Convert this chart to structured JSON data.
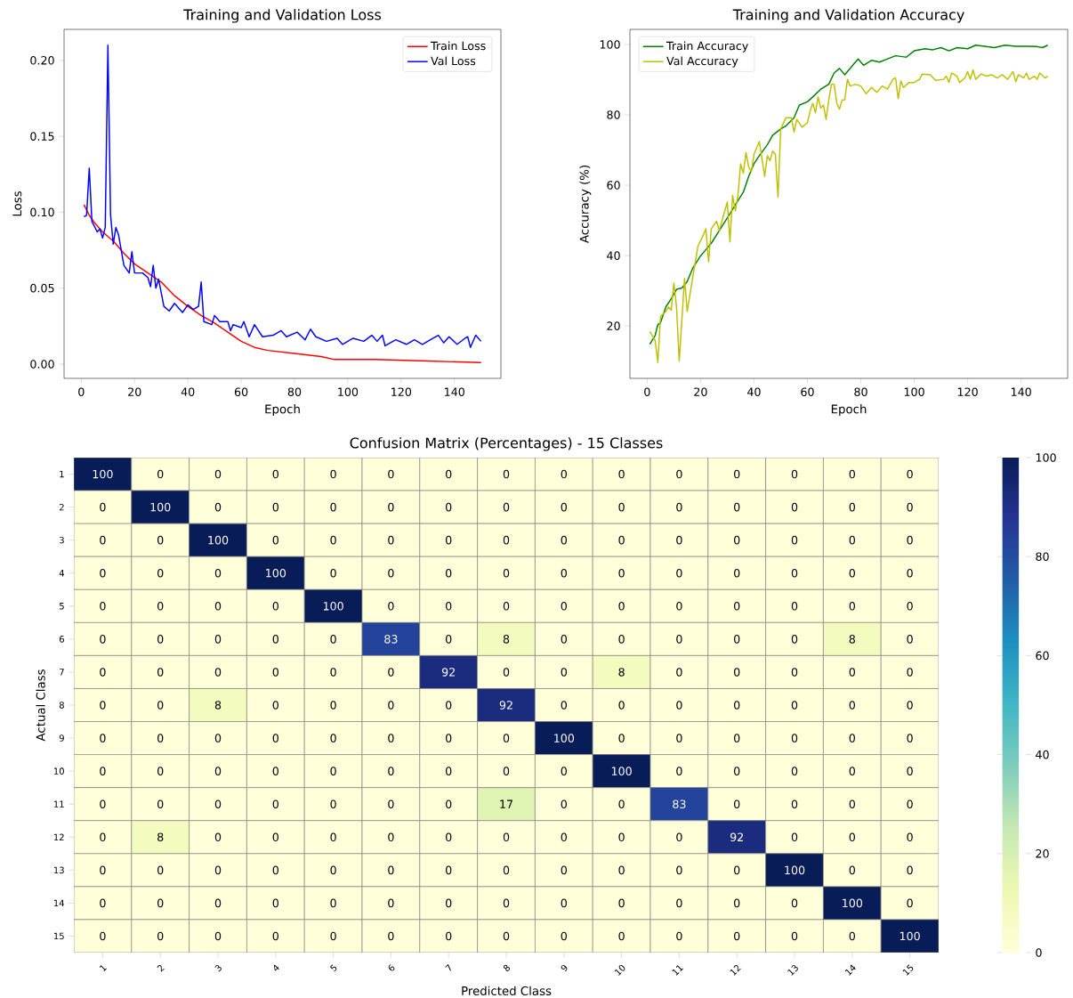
{
  "chart_data": [
    {
      "type": "line",
      "title": "Training and Validation Loss",
      "xlabel": "Epoch",
      "ylabel": "Loss",
      "legend": "top right",
      "xlim": [
        -6.45,
        157.45
      ],
      "ylim": [
        -0.0094,
        0.2204
      ],
      "xticks": [
        0,
        20,
        40,
        60,
        80,
        100,
        120,
        140
      ],
      "yticks": [
        {
          "value": 0,
          "label": "0.00"
        },
        {
          "value": 0.05,
          "label": "0.05"
        },
        {
          "value": 0.1,
          "label": "0.10"
        },
        {
          "value": 0.15,
          "label": "0.15"
        },
        {
          "value": 0.2,
          "label": "0.20"
        }
      ],
      "series": [
        {
          "name": "Train Loss",
          "color": "#ff0000",
          "x": [
            1,
            3,
            5,
            8,
            12,
            16,
            20,
            25,
            30,
            35,
            40,
            45,
            50,
            55,
            60,
            65,
            70,
            80,
            90,
            95,
            110,
            130,
            150
          ],
          "values": [
            0.105,
            0.098,
            0.093,
            0.087,
            0.081,
            0.073,
            0.066,
            0.06,
            0.054,
            0.045,
            0.038,
            0.032,
            0.027,
            0.021,
            0.015,
            0.011,
            0.009,
            0.007,
            0.005,
            0.003,
            0.003,
            0.002,
            0.001
          ]
        },
        {
          "name": "Val Loss",
          "color": "#0000ff",
          "x": [
            1,
            2,
            3,
            4,
            6,
            7,
            8,
            9,
            10,
            11,
            12,
            13,
            14,
            16,
            18,
            19,
            20,
            23,
            25,
            26,
            27,
            28,
            29,
            31,
            33,
            35,
            38,
            40,
            42,
            44,
            45,
            46,
            49,
            50,
            52,
            55,
            56,
            57,
            60,
            61,
            63,
            65,
            68,
            72,
            75,
            77,
            81,
            84,
            86,
            88,
            92,
            96,
            98,
            102,
            106,
            109,
            111,
            113,
            114,
            118,
            122,
            125,
            128,
            132,
            134,
            136,
            138,
            141,
            144,
            145,
            146,
            148,
            150
          ],
          "values": [
            0.097,
            0.098,
            0.129,
            0.094,
            0.087,
            0.089,
            0.083,
            0.09,
            0.21,
            0.098,
            0.079,
            0.09,
            0.085,
            0.065,
            0.06,
            0.074,
            0.06,
            0.06,
            0.057,
            0.051,
            0.065,
            0.05,
            0.056,
            0.038,
            0.035,
            0.04,
            0.034,
            0.039,
            0.036,
            0.038,
            0.054,
            0.028,
            0.026,
            0.032,
            0.028,
            0.028,
            0.022,
            0.026,
            0.024,
            0.028,
            0.018,
            0.026,
            0.018,
            0.019,
            0.022,
            0.018,
            0.021,
            0.016,
            0.023,
            0.018,
            0.015,
            0.017,
            0.013,
            0.017,
            0.015,
            0.019,
            0.015,
            0.019,
            0.012,
            0.016,
            0.013,
            0.016,
            0.013,
            0.017,
            0.019,
            0.014,
            0.018,
            0.013,
            0.017,
            0.018,
            0.011,
            0.019,
            0.015
          ]
        }
      ]
    },
    {
      "type": "line",
      "title": "Training and Validation Accuracy",
      "xlabel": "Epoch",
      "ylabel": "Accuracy (%)",
      "legend": "top left",
      "xlim": [
        -6.45,
        157.45
      ],
      "ylim": [
        5.1,
        104.3
      ],
      "xticks": [
        0,
        20,
        40,
        60,
        80,
        100,
        120,
        140
      ],
      "yticks": [
        20,
        40,
        60,
        80,
        100
      ],
      "series": [
        {
          "name": "Train Accuracy",
          "color": "#008000",
          "x": [
            1,
            3,
            4,
            5,
            7,
            9,
            11,
            13,
            15,
            17,
            20,
            22,
            24,
            27,
            30,
            33,
            36,
            38,
            40,
            42,
            45,
            47,
            50,
            52,
            55,
            57,
            60,
            62,
            65,
            68,
            70,
            72,
            74,
            77,
            79,
            81,
            84,
            87,
            90,
            93,
            97,
            100,
            104,
            107,
            110,
            113,
            116,
            120,
            123,
            127,
            130,
            134,
            138,
            142,
            146,
            148,
            150
          ],
          "values": [
            14.8,
            17.3,
            20.4,
            20.9,
            25.4,
            27.7,
            30.4,
            30.8,
            32.6,
            36.3,
            39.9,
            41.7,
            43.5,
            47.1,
            50.7,
            54.4,
            58.0,
            62.5,
            66.1,
            68.4,
            71.5,
            74.2,
            76.0,
            76.9,
            79.2,
            82.8,
            83.7,
            85.1,
            87.3,
            88.7,
            91.9,
            93.2,
            91.4,
            94.1,
            95.9,
            94.1,
            95.5,
            95.0,
            95.9,
            96.8,
            96.4,
            98.2,
            98.8,
            98.5,
            99.1,
            98.2,
            99.1,
            98.8,
            99.8,
            99.4,
            99.1,
            99.8,
            99.5,
            99.5,
            99.4,
            99.1,
            99.8
          ]
        },
        {
          "name": "Val Accuracy",
          "color": "#bfbf00",
          "x": [
            1,
            3,
            4,
            5,
            7,
            8,
            9,
            10,
            11,
            12,
            14,
            15,
            17,
            19,
            21,
            22,
            23,
            24,
            26,
            27,
            29,
            30,
            31,
            32,
            33,
            34,
            35,
            36,
            37,
            38,
            39,
            40,
            42,
            44,
            45,
            46,
            47,
            48,
            49,
            50,
            52,
            54,
            55,
            56,
            58,
            60,
            61,
            62,
            63,
            64,
            65,
            66,
            67,
            68,
            69,
            70,
            71,
            72,
            73,
            74,
            75,
            76,
            78,
            80,
            82,
            84,
            86,
            88,
            90,
            92,
            93,
            94,
            95,
            96,
            98,
            100,
            102,
            103,
            106,
            108,
            111,
            112,
            113,
            114,
            116,
            117,
            119,
            120,
            121,
            122,
            123,
            125,
            127,
            129,
            131,
            133,
            135,
            137,
            138,
            139,
            141,
            142,
            143,
            145,
            146,
            147,
            149,
            150
          ],
          "values": [
            18.4,
            15.9,
            9.6,
            22.7,
            24.1,
            25.4,
            24.5,
            32.2,
            25.4,
            10.0,
            33.5,
            24.1,
            33.5,
            42.6,
            45.8,
            47.6,
            38.2,
            47.6,
            49.8,
            47.1,
            52.5,
            55.2,
            43.9,
            57.1,
            52.7,
            57.1,
            66.1,
            63.4,
            69.3,
            65.2,
            63.8,
            68.8,
            72.4,
            62.5,
            68.4,
            67.0,
            69.7,
            68.8,
            56.6,
            76.0,
            79.2,
            79.2,
            75.1,
            78.7,
            76.5,
            77.8,
            81.0,
            83.3,
            80.6,
            85.1,
            81.9,
            82.8,
            78.7,
            84.2,
            88.7,
            88.7,
            83.3,
            81.6,
            84.2,
            84.3,
            90.1,
            88.2,
            88.7,
            88.2,
            86.0,
            87.8,
            86.4,
            88.2,
            87.3,
            90.1,
            90.5,
            84.6,
            89.6,
            87.8,
            89.2,
            89.2,
            90.1,
            91.6,
            91.4,
            89.8,
            90.1,
            91.0,
            89.2,
            91.9,
            91.0,
            89.2,
            90.5,
            92.3,
            90.1,
            92.8,
            90.1,
            91.6,
            91.0,
            91.4,
            90.5,
            91.4,
            90.1,
            92.3,
            89.4,
            91.4,
            90.5,
            91.9,
            90.1,
            91.0,
            90.1,
            91.9,
            90.5,
            91.0
          ]
        }
      ]
    },
    {
      "type": "heatmap",
      "title": "Confusion Matrix (Percentages) - 15 Classes",
      "xlabel": "Predicted Class",
      "ylabel": "Actual Class",
      "data_labels": true,
      "categories": [
        "1",
        "2",
        "3",
        "4",
        "5",
        "6",
        "7",
        "8",
        "9",
        "10",
        "11",
        "12",
        "13",
        "14",
        "15"
      ],
      "y_categories": [
        "1",
        "2",
        "3",
        "4",
        "5",
        "6",
        "7",
        "8",
        "9",
        "10",
        "11",
        "12",
        "13",
        "14",
        "15"
      ],
      "clim": [
        0,
        100
      ],
      "cticks": [
        0,
        20,
        40,
        60,
        80,
        100
      ],
      "cells": [
        [
          100,
          0,
          0,
          0,
          0,
          0,
          0,
          0,
          0,
          0,
          0,
          0,
          0,
          0,
          0
        ],
        [
          0,
          100,
          0,
          0,
          0,
          0,
          0,
          0,
          0,
          0,
          0,
          0,
          0,
          0,
          0
        ],
        [
          0,
          0,
          100,
          0,
          0,
          0,
          0,
          0,
          0,
          0,
          0,
          0,
          0,
          0,
          0
        ],
        [
          0,
          0,
          0,
          100,
          0,
          0,
          0,
          0,
          0,
          0,
          0,
          0,
          0,
          0,
          0
        ],
        [
          0,
          0,
          0,
          0,
          100,
          0,
          0,
          0,
          0,
          0,
          0,
          0,
          0,
          0,
          0
        ],
        [
          0,
          0,
          0,
          0,
          0,
          83,
          0,
          8,
          0,
          0,
          0,
          0,
          0,
          8,
          0
        ],
        [
          0,
          0,
          0,
          0,
          0,
          0,
          92,
          0,
          0,
          8,
          0,
          0,
          0,
          0,
          0
        ],
        [
          0,
          0,
          8,
          0,
          0,
          0,
          0,
          92,
          0,
          0,
          0,
          0,
          0,
          0,
          0
        ],
        [
          0,
          0,
          0,
          0,
          0,
          0,
          0,
          0,
          100,
          0,
          0,
          0,
          0,
          0,
          0
        ],
        [
          0,
          0,
          0,
          0,
          0,
          0,
          0,
          0,
          0,
          100,
          0,
          0,
          0,
          0,
          0
        ],
        [
          0,
          0,
          0,
          0,
          0,
          0,
          0,
          17,
          0,
          0,
          83,
          0,
          0,
          0,
          0
        ],
        [
          0,
          8,
          0,
          0,
          0,
          0,
          0,
          0,
          0,
          0,
          0,
          92,
          0,
          0,
          0
        ],
        [
          0,
          0,
          0,
          0,
          0,
          0,
          0,
          0,
          0,
          0,
          0,
          0,
          100,
          0,
          0
        ],
        [
          0,
          0,
          0,
          0,
          0,
          0,
          0,
          0,
          0,
          0,
          0,
          0,
          0,
          100,
          0
        ],
        [
          0,
          0,
          0,
          0,
          0,
          0,
          0,
          0,
          0,
          0,
          0,
          0,
          0,
          0,
          100
        ]
      ]
    }
  ]
}
